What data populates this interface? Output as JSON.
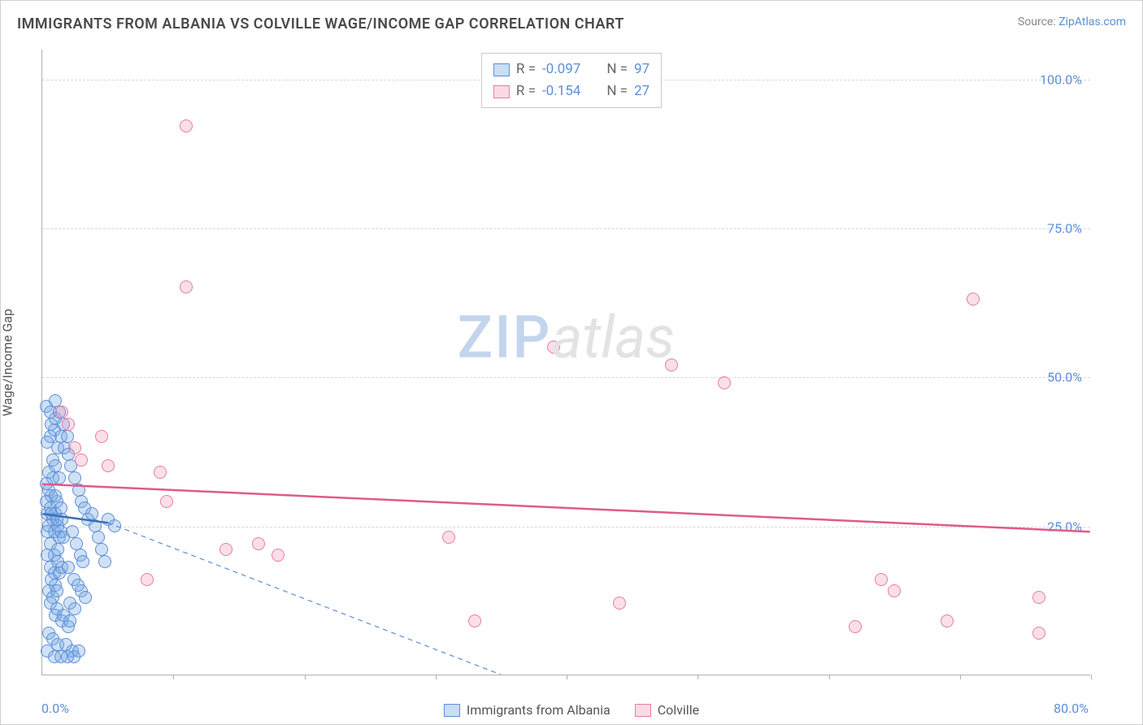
{
  "title": "IMMIGRANTS FROM ALBANIA VS COLVILLE WAGE/INCOME GAP CORRELATION CHART",
  "source_prefix": "Source: ",
  "source_link": "ZipAtlas.com",
  "ylabel": "Wage/Income Gap",
  "watermark_zip": "ZIP",
  "watermark_atlas": "atlas",
  "chart": {
    "type": "scatter",
    "xlim": [
      0,
      80
    ],
    "ylim": [
      0,
      105
    ],
    "x_tick_positions": [
      0,
      10,
      20,
      30,
      40,
      50,
      60,
      70,
      80
    ],
    "x_tick_labels": {
      "0": "0.0%",
      "80": "80.0%"
    },
    "y_ticks": [
      25,
      50,
      75,
      100
    ],
    "y_tick_labels": [
      "25.0%",
      "50.0%",
      "75.0%",
      "100.0%"
    ],
    "grid_color": "#d8d8d8",
    "axis_color": "#b0b0b0",
    "background_color": "#ffffff",
    "marker_radius": 8,
    "series": [
      {
        "name": "Immigrants from Albania",
        "color_fill": "rgba(120,170,230,0.35)",
        "color_stroke": "#5b8fd6",
        "R": "-0.097",
        "N": "97",
        "trend_solid": {
          "x1": 0,
          "y1": 27,
          "x2": 5,
          "y2": 25.5,
          "color": "#3b6fb6",
          "width": 2.5
        },
        "trend_dashed": {
          "x1": 5,
          "y1": 25.5,
          "x2": 35,
          "y2": 0,
          "color": "#5b8fd6",
          "width": 1.2
        },
        "points": [
          [
            0.3,
            29
          ],
          [
            0.4,
            27
          ],
          [
            0.5,
            25
          ],
          [
            0.6,
            28
          ],
          [
            0.7,
            30
          ],
          [
            0.8,
            26
          ],
          [
            0.9,
            24
          ],
          [
            1.0,
            27
          ],
          [
            1.1,
            29
          ],
          [
            1.2,
            25
          ],
          [
            1.3,
            23
          ],
          [
            1.4,
            28
          ],
          [
            1.5,
            26
          ],
          [
            0.5,
            31
          ],
          [
            0.8,
            33
          ],
          [
            1.0,
            30
          ],
          [
            0.6,
            22
          ],
          [
            0.9,
            20
          ],
          [
            1.2,
            21
          ],
          [
            0.4,
            24
          ],
          [
            0.7,
            27
          ],
          [
            1.1,
            26
          ],
          [
            1.4,
            24
          ],
          [
            1.6,
            23
          ],
          [
            0.3,
            32
          ],
          [
            0.5,
            34
          ],
          [
            0.8,
            36
          ],
          [
            1.0,
            35
          ],
          [
            1.3,
            33
          ],
          [
            0.6,
            18
          ],
          [
            0.9,
            17
          ],
          [
            1.2,
            19
          ],
          [
            0.4,
            20
          ],
          [
            0.7,
            16
          ],
          [
            1.0,
            15
          ],
          [
            1.3,
            17
          ],
          [
            1.5,
            18
          ],
          [
            0.5,
            14
          ],
          [
            0.8,
            13
          ],
          [
            1.1,
            14
          ],
          [
            0.6,
            40
          ],
          [
            0.9,
            41
          ],
          [
            1.2,
            38
          ],
          [
            0.4,
            39
          ],
          [
            0.7,
            42
          ],
          [
            1.0,
            43
          ],
          [
            1.4,
            40
          ],
          [
            1.7,
            38
          ],
          [
            2.0,
            37
          ],
          [
            2.2,
            35
          ],
          [
            2.5,
            33
          ],
          [
            2.8,
            31
          ],
          [
            3.0,
            29
          ],
          [
            3.2,
            28
          ],
          [
            3.5,
            26
          ],
          [
            2.3,
            24
          ],
          [
            2.6,
            22
          ],
          [
            2.9,
            20
          ],
          [
            3.1,
            19
          ],
          [
            2.0,
            18
          ],
          [
            2.4,
            16
          ],
          [
            2.7,
            15
          ],
          [
            3.0,
            14
          ],
          [
            3.3,
            13
          ],
          [
            2.1,
            12
          ],
          [
            2.5,
            11
          ],
          [
            0.3,
            45
          ],
          [
            0.6,
            44
          ],
          [
            1.0,
            46
          ],
          [
            1.3,
            44
          ],
          [
            1.6,
            42
          ],
          [
            1.9,
            40
          ],
          [
            3.8,
            27
          ],
          [
            4.0,
            25
          ],
          [
            4.3,
            23
          ],
          [
            4.5,
            21
          ],
          [
            4.8,
            19
          ],
          [
            5.0,
            26
          ],
          [
            5.5,
            25
          ],
          [
            1.0,
            10
          ],
          [
            1.5,
            9
          ],
          [
            2.0,
            8
          ],
          [
            0.5,
            7
          ],
          [
            0.8,
            6
          ],
          [
            1.2,
            5
          ],
          [
            1.8,
            5
          ],
          [
            2.3,
            4
          ],
          [
            2.8,
            4
          ],
          [
            0.4,
            4
          ],
          [
            0.9,
            3
          ],
          [
            1.4,
            3
          ],
          [
            1.9,
            3
          ],
          [
            2.4,
            3
          ],
          [
            0.6,
            12
          ],
          [
            1.1,
            11
          ],
          [
            1.6,
            10
          ],
          [
            2.1,
            9
          ]
        ]
      },
      {
        "name": "Colville",
        "color_fill": "rgba(240,150,180,0.30)",
        "color_stroke": "#e97ba5",
        "R": "-0.154",
        "N": "27",
        "trend_solid": {
          "x1": 0,
          "y1": 32,
          "x2": 80,
          "y2": 24,
          "color": "#e05a8a",
          "width": 2.5
        },
        "points": [
          [
            1.5,
            44
          ],
          [
            2.0,
            42
          ],
          [
            2.5,
            38
          ],
          [
            3.0,
            36
          ],
          [
            4.5,
            40
          ],
          [
            5.0,
            35
          ],
          [
            9.0,
            34
          ],
          [
            9.5,
            29
          ],
          [
            8.0,
            16
          ],
          [
            14.0,
            21
          ],
          [
            16.5,
            22
          ],
          [
            18.0,
            20
          ],
          [
            11.0,
            92
          ],
          [
            11.0,
            65
          ],
          [
            39.0,
            55
          ],
          [
            48.0,
            52
          ],
          [
            52.0,
            49
          ],
          [
            31.0,
            23
          ],
          [
            33.0,
            9
          ],
          [
            44.0,
            12
          ],
          [
            65.0,
            14
          ],
          [
            62.0,
            8
          ],
          [
            71.0,
            63
          ],
          [
            64.0,
            16
          ],
          [
            69.0,
            9
          ],
          [
            76.0,
            13
          ],
          [
            76.0,
            7
          ]
        ]
      }
    ]
  },
  "legend_labels": {
    "R_eq": "R = ",
    "N_eq": "N = "
  }
}
